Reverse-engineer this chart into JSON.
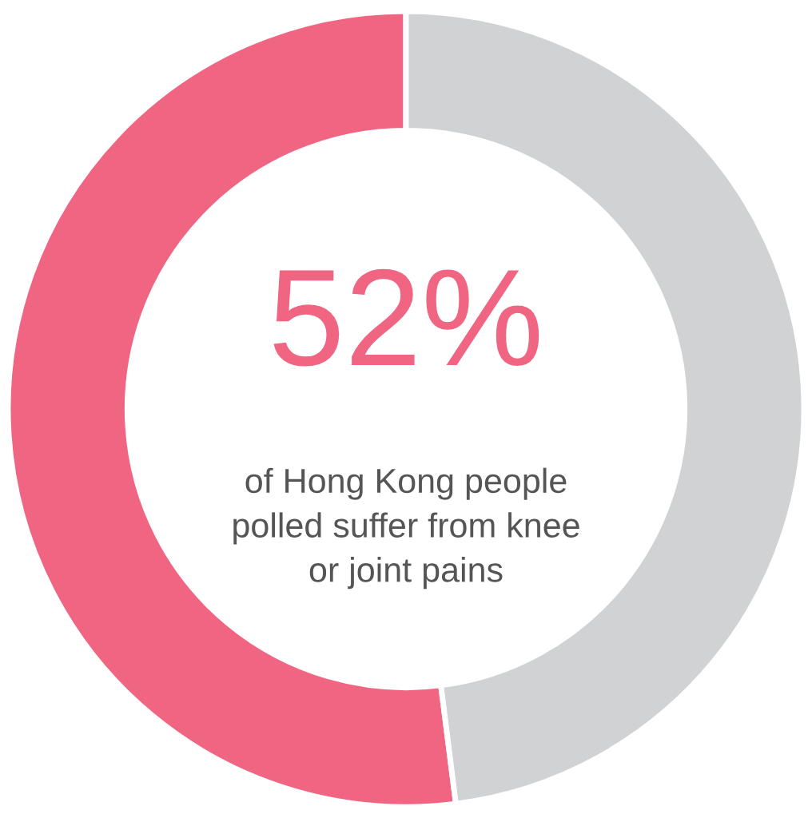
{
  "chart_data": {
    "type": "donut",
    "categories": [
      null,
      null
    ],
    "values": [
      52,
      48
    ],
    "colors": [
      "#f06682",
      "#d1d2d4"
    ],
    "annotations": [
      "52%",
      "of Hong Kong people\npolled suffer from knee\nor joint pains"
    ]
  }
}
